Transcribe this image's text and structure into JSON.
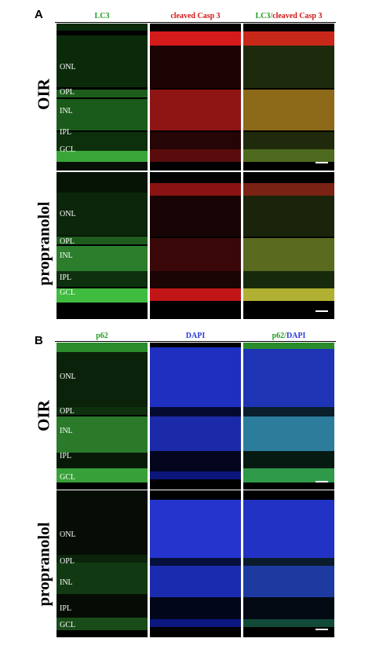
{
  "panel_a": {
    "letter": "A",
    "col_titles": [
      "LC3",
      "cleaved Casp 3",
      "LC3/",
      "cleaved Casp 3"
    ],
    "rows": [
      "OIR",
      "propranolol"
    ],
    "layers_top": [
      "ONL",
      "OPL",
      "INL",
      "IPL",
      "GCL"
    ],
    "layers_bottom": [
      "ONL",
      "OPL",
      "INL",
      "IPL",
      "GCL"
    ]
  },
  "panel_b": {
    "letter": "B",
    "col_titles": [
      "p62",
      "DAPI",
      "p62/",
      "DAPI"
    ],
    "rows": [
      "OIR",
      "propranolol"
    ],
    "layers_top": [
      "ONL",
      "OPL",
      "INL",
      "IPL",
      "GCL"
    ],
    "layers_bottom": [
      "ONL",
      "OPL",
      "INL",
      "IPL",
      "GCL"
    ]
  },
  "colors": {
    "green": "#1f9e1f",
    "red": "#d21818",
    "blue": "#2b3bd6"
  }
}
